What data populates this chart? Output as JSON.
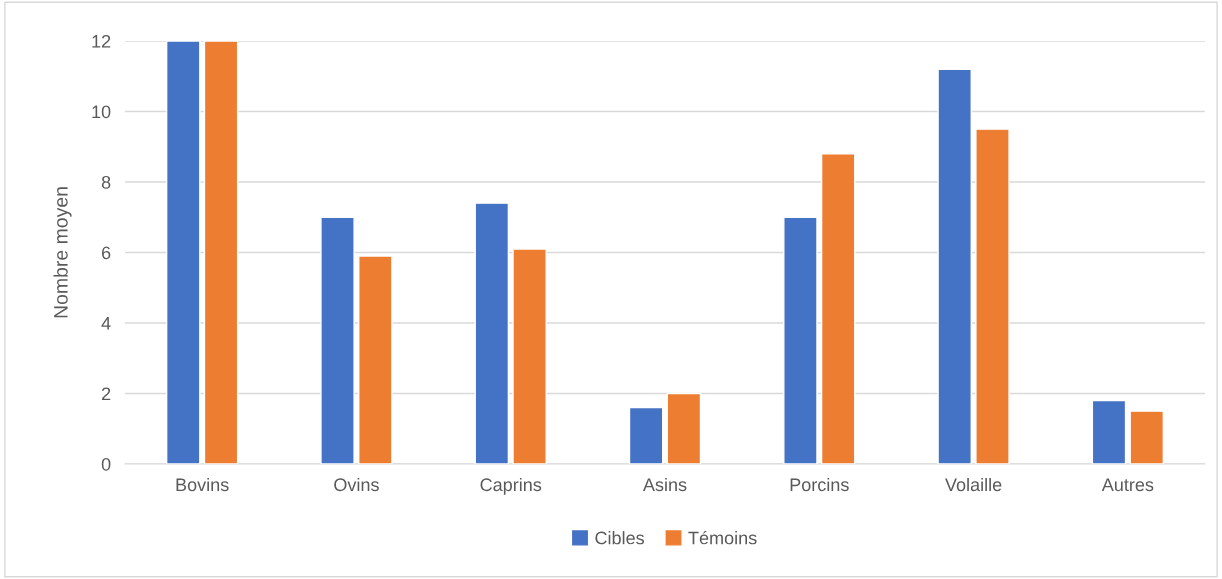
{
  "chart_data": {
    "type": "bar",
    "ylabel": "Nombre moyen",
    "categories": [
      "Bovins",
      "Ovins",
      "Caprins",
      "Asins",
      "Porcins",
      "Volaille",
      "Autres"
    ],
    "series": [
      {
        "name": "Cibles",
        "color": "#4472c4",
        "values": [
          12,
          7.0,
          7.4,
          1.6,
          7.0,
          11.2,
          1.8
        ]
      },
      {
        "name": "Témoins",
        "color": "#ed7d31",
        "values": [
          12,
          5.9,
          6.1,
          2.0,
          8.8,
          9.5,
          1.5
        ]
      }
    ],
    "ylim": [
      0,
      12
    ],
    "yticks": [
      0,
      2,
      4,
      6,
      8,
      10,
      12
    ],
    "grid": "y",
    "legend": "bottom"
  }
}
